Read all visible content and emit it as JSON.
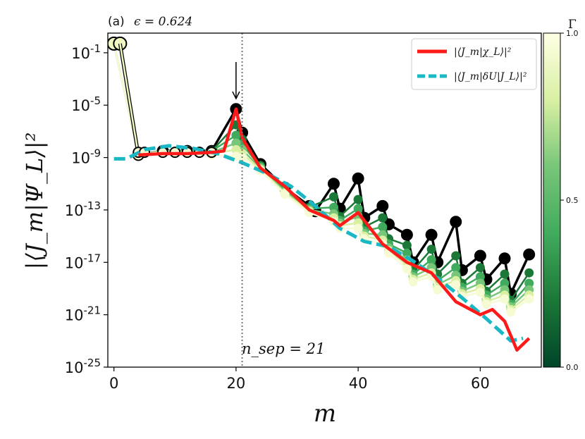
{
  "panel_label": "(a)",
  "epsilon_label": "ϵ = 0.624",
  "chart_data": {
    "type": "line",
    "title": "",
    "xlabel": "m",
    "ylabel": "|⟨J_m|Ψ_L⟩|²",
    "xlim": [
      -1,
      70
    ],
    "ylim_log10": [
      -25,
      0.5
    ],
    "y_scale": "log",
    "xticks": [
      0,
      20,
      40,
      60
    ],
    "yticks": [
      {
        "exp": -1,
        "base": "10",
        "sup": "-1"
      },
      {
        "exp": -5,
        "base": "10",
        "sup": "-5"
      },
      {
        "exp": -9,
        "base": "10",
        "sup": "-9"
      },
      {
        "exp": -13,
        "base": "10",
        "sup": "-13"
      },
      {
        "exp": -17,
        "base": "10",
        "sup": "-17"
      },
      {
        "exp": -21,
        "base": "10",
        "sup": "-21"
      },
      {
        "exp": -25,
        "base": "10",
        "sup": "-25"
      }
    ],
    "legend": [
      {
        "label": "|⟨J_m|χ_L⟩|²",
        "color": "#ff1a1a",
        "style": "solid"
      },
      {
        "label": "|⟨J_m|δU|J_L⟩|²",
        "color": "#1ab8c4",
        "style": "dashed"
      }
    ],
    "legend_position": "top-right",
    "vline": {
      "x": 21,
      "label": "n_sep = 21"
    },
    "arrow_x": 20,
    "colorbar": {
      "label": "Γ",
      "ticks": [
        "1.0",
        "0.5",
        "0.0"
      ],
      "colormap": "YlGn_r"
    },
    "gamma_series": [
      {
        "gamma": 1.0,
        "x": [
          0,
          1,
          4,
          8,
          12,
          16,
          20,
          21,
          24,
          28,
          32,
          33,
          36,
          37,
          40,
          41,
          44,
          45,
          48,
          49,
          52,
          53,
          56,
          57,
          60,
          61,
          64,
          65,
          68
        ],
        "log10y": [
          -0.3,
          -0.3,
          -8.8,
          -8.5,
          -8.5,
          -8.5,
          -5.3,
          -7.1,
          -9.5,
          -11.3,
          -12.7,
          -13.1,
          -11.0,
          -12.9,
          -10.6,
          -13.6,
          -12.7,
          -14.1,
          -14.9,
          -17.0,
          -14.9,
          -17.0,
          -13.9,
          -17.6,
          -16.5,
          -18.3,
          -16.7,
          -19.4,
          -16.4
        ]
      },
      {
        "gamma": 0.8,
        "x": [
          0,
          4,
          8,
          12,
          16,
          20,
          21,
          24,
          28,
          32,
          36,
          37,
          40,
          41,
          44,
          45,
          48,
          49,
          52,
          53,
          56,
          57,
          60,
          61,
          64,
          65,
          68
        ],
        "log10y": [
          -0.3,
          -8.8,
          -8.5,
          -8.5,
          -8.5,
          -6.5,
          -7.6,
          -9.6,
          -11.4,
          -12.8,
          -12.0,
          -13.5,
          -12.2,
          -14.3,
          -13.6,
          -15.2,
          -15.7,
          -17.6,
          -16.0,
          -17.9,
          -16.5,
          -18.6,
          -17.4,
          -19.2,
          -17.9,
          -19.9,
          -17.8
        ]
      },
      {
        "gamma": 0.6,
        "x": [
          0,
          4,
          8,
          12,
          16,
          20,
          21,
          24,
          28,
          32,
          36,
          37,
          40,
          41,
          44,
          45,
          48,
          49,
          52,
          53,
          56,
          57,
          60,
          61,
          64,
          65,
          68
        ],
        "log10y": [
          -0.3,
          -8.8,
          -8.5,
          -8.5,
          -8.5,
          -7.3,
          -8.0,
          -9.7,
          -11.5,
          -12.9,
          -12.8,
          -13.8,
          -12.9,
          -14.6,
          -14.3,
          -15.6,
          -16.3,
          -17.9,
          -16.8,
          -18.4,
          -17.4,
          -18.9,
          -18.1,
          -19.5,
          -18.6,
          -20.2,
          -18.6
        ]
      },
      {
        "gamma": 0.4,
        "x": [
          0,
          4,
          8,
          12,
          16,
          20,
          21,
          24,
          28,
          32,
          36,
          37,
          40,
          41,
          44,
          45,
          48,
          49,
          52,
          53,
          56,
          57,
          60,
          61,
          64,
          65,
          68
        ],
        "log10y": [
          -0.3,
          -8.8,
          -8.5,
          -8.5,
          -8.6,
          -7.9,
          -8.4,
          -9.8,
          -11.6,
          -13.0,
          -13.3,
          -14.0,
          -13.5,
          -14.8,
          -14.9,
          -15.9,
          -16.8,
          -18.1,
          -17.4,
          -18.7,
          -18.0,
          -19.2,
          -18.6,
          -19.8,
          -19.1,
          -20.4,
          -19.1
        ]
      },
      {
        "gamma": 0.2,
        "x": [
          0,
          4,
          8,
          12,
          16,
          20,
          21,
          24,
          28,
          32,
          36,
          37,
          40,
          41,
          44,
          45,
          48,
          49,
          52,
          53,
          56,
          57,
          60,
          61,
          64,
          65,
          68
        ],
        "log10y": [
          -0.3,
          -8.8,
          -8.5,
          -8.6,
          -8.7,
          -8.4,
          -8.7,
          -9.9,
          -11.7,
          -13.1,
          -13.6,
          -14.2,
          -14.0,
          -15.0,
          -15.3,
          -16.1,
          -17.2,
          -18.3,
          -17.8,
          -18.9,
          -18.4,
          -19.4,
          -19.0,
          -20.0,
          -19.5,
          -20.6,
          -19.5
        ]
      },
      {
        "gamma": 0.05,
        "x": [
          0,
          4,
          8,
          12,
          16,
          20,
          21,
          24,
          28,
          32,
          36,
          37,
          40,
          41,
          44,
          45,
          48,
          49,
          52,
          53,
          56,
          57,
          60,
          61,
          64,
          65,
          68
        ],
        "log10y": [
          -0.3,
          -8.8,
          -8.6,
          -8.7,
          -8.8,
          -8.9,
          -9.0,
          -10.0,
          -11.8,
          -13.2,
          -13.9,
          -14.4,
          -14.4,
          -15.2,
          -15.6,
          -16.3,
          -17.5,
          -18.5,
          -18.1,
          -19.1,
          -18.7,
          -19.6,
          -19.3,
          -20.2,
          -19.8,
          -20.8,
          -19.8
        ]
      }
    ],
    "red_series": {
      "x": [
        4,
        8,
        12,
        16,
        18,
        20,
        21,
        24,
        28,
        32,
        36,
        37,
        40,
        44,
        48,
        52,
        56,
        60,
        62,
        64,
        66,
        68
      ],
      "log10y": [
        -8.8,
        -8.7,
        -8.7,
        -8.6,
        -8.5,
        -5.3,
        -7.5,
        -9.8,
        -11.2,
        -13.0,
        -13.8,
        -14.2,
        -13.2,
        -15.6,
        -17.0,
        -17.8,
        -20.0,
        -21.0,
        -20.6,
        -21.5,
        -23.7,
        -22.8
      ]
    },
    "cyan_series": {
      "x": [
        0,
        2,
        5,
        9,
        13,
        17,
        21,
        25,
        29,
        33,
        37,
        41,
        45,
        49,
        53,
        57,
        61,
        65,
        67
      ],
      "log10y": [
        -9.1,
        -9.1,
        -8.4,
        -8.1,
        -8.3,
        -8.7,
        -9.4,
        -10.2,
        -11.2,
        -12.7,
        -14.4,
        -15.4,
        -15.8,
        -16.9,
        -18.2,
        -19.7,
        -21.3,
        -23.0,
        -22.8
      ]
    }
  }
}
